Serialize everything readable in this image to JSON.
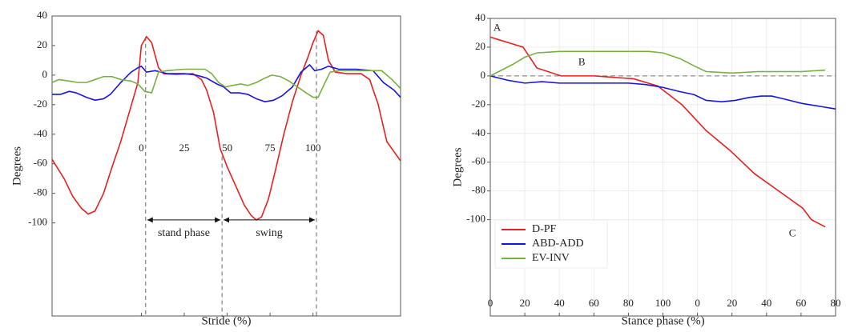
{
  "chart_data": [
    {
      "type": "line",
      "xlabel": "Stride (%)",
      "ylabel": "Degrees",
      "xlim": [
        -52,
        151
      ],
      "ylim": [
        -163,
        40
      ],
      "xticks": [
        0,
        25,
        50,
        75,
        100
      ],
      "yticks": [
        40,
        20,
        0,
        -20,
        -40,
        -60,
        -80,
        -100
      ],
      "series": [
        {
          "color": "#e8201e",
          "x": [
            -52,
            -45,
            -40,
            -35,
            -31,
            -27,
            -22,
            -17,
            -12,
            -7,
            -2,
            0,
            3,
            6,
            10,
            13,
            20,
            30,
            35,
            38,
            42,
            46,
            50,
            55,
            60,
            64,
            67,
            70,
            74,
            78,
            83,
            88,
            93,
            97,
            100,
            103,
            106,
            109,
            113,
            120,
            128,
            133,
            138,
            143,
            151
          ],
          "values": [
            -57,
            -70,
            -82,
            -90,
            -94,
            -92,
            -80,
            -62,
            -45,
            -25,
            -5,
            20,
            26,
            22,
            5,
            1,
            0.5,
            1,
            -3,
            -10,
            -25,
            -50,
            -62,
            -75,
            -88,
            -95,
            -98,
            -96,
            -84,
            -65,
            -40,
            -18,
            0,
            12,
            22,
            30,
            27,
            10,
            2,
            1,
            1,
            -3,
            -20,
            -45,
            -58
          ]
        },
        {
          "color": "#1515e0",
          "x": [
            -52,
            -47,
            -42,
            -38,
            -32,
            -27,
            -22,
            -18,
            -12,
            -6,
            -2,
            0,
            3,
            8,
            15,
            25,
            32,
            38,
            44,
            48,
            52,
            57,
            62,
            67,
            72,
            77,
            82,
            88,
            93,
            98,
            101,
            105,
            109,
            115,
            125,
            135,
            141,
            147,
            151
          ],
          "values": [
            -13,
            -13,
            -11,
            -12,
            -15,
            -17,
            -16,
            -13,
            -5,
            2,
            5,
            6,
            2,
            3,
            1,
            1,
            0,
            -2,
            -6,
            -8,
            -12,
            -12,
            -13,
            -16,
            -18,
            -17,
            -14,
            -8,
            2,
            7,
            3,
            4,
            6,
            4,
            4,
            3,
            -5,
            -10,
            -15
          ]
        },
        {
          "color": "#77b040",
          "x": [
            -52,
            -48,
            -42,
            -37,
            -32,
            -27,
            -22,
            -17,
            -12,
            -6,
            -2,
            2,
            6,
            10,
            15,
            25,
            32,
            37,
            41,
            45,
            49,
            53,
            58,
            62,
            67,
            72,
            76,
            81,
            86,
            91,
            96,
            100,
            103,
            107,
            110,
            115,
            125,
            135,
            140,
            146,
            151
          ],
          "values": [
            -5,
            -3,
            -4,
            -5,
            -5,
            -3,
            -1,
            -1,
            -3,
            -4,
            -6,
            -11,
            -12,
            2,
            3,
            4,
            4,
            4,
            1,
            -5,
            -8,
            -7,
            -6,
            -7,
            -5,
            -2,
            0,
            -1,
            -4,
            -8,
            -12,
            -15,
            -15,
            -5,
            2,
            3,
            3,
            3,
            3,
            -3,
            -9
          ]
        }
      ],
      "vlines": [
        {
          "x": 2.5,
          "y": 26
        },
        {
          "x": 47,
          "y": -55
        },
        {
          "x": 102,
          "y": 30
        }
      ],
      "spans": [
        {
          "label": "stand phase",
          "x": [
            2.5,
            47
          ],
          "y": -98
        },
        {
          "label": "swing",
          "x": [
            47,
            102
          ],
          "y": -98
        }
      ]
    },
    {
      "type": "line",
      "xlabel": "Stance phase (%)",
      "ylabel": "Degrees",
      "xlim": [
        0,
        200
      ],
      "ylim": [
        -167,
        40
      ],
      "grid": true,
      "hline": 0,
      "legend": "lower left",
      "xticks": [
        0,
        20,
        40,
        60,
        80,
        100,
        {
          "value": 120,
          "label": "0"
        },
        {
          "value": 140,
          "label": "20"
        },
        {
          "value": 160,
          "label": "40"
        },
        {
          "value": 180,
          "label": "60"
        },
        {
          "value": 200,
          "label": "80"
        }
      ],
      "yticks": [
        40,
        20,
        0,
        -20,
        -40,
        -60,
        -80,
        -100
      ],
      "series": [
        {
          "name": "D-PF",
          "color": "#e8201e",
          "x": [
            0,
            19,
            27,
            41,
            60,
            83,
            97,
            111,
            125,
            139,
            153,
            167,
            181,
            186,
            194
          ],
          "values": [
            27,
            20,
            5.5,
            0,
            0,
            -2,
            -7,
            -20,
            -38,
            -52,
            -68,
            -80,
            -92,
            -100,
            -105
          ]
        },
        {
          "name": "ABD-ADD",
          "color": "#1515e0",
          "x": [
            0,
            10,
            20,
            30,
            40,
            60,
            80,
            90,
            100,
            110,
            118,
            125,
            134,
            142,
            150,
            157,
            163,
            170,
            180,
            190,
            200
          ],
          "values": [
            0,
            -3,
            -5,
            -4,
            -5,
            -5,
            -5,
            -6,
            -8,
            -11,
            -13,
            -17,
            -18,
            -17,
            -15,
            -14,
            -14,
            -16,
            -19,
            -21,
            -23
          ]
        },
        {
          "name": "EV-INV",
          "color": "#77b040",
          "x": [
            0,
            13,
            20,
            27,
            40,
            60,
            80,
            92,
            100,
            110,
            118,
            125,
            140,
            155,
            170,
            180,
            194
          ],
          "values": [
            0,
            8,
            13,
            16,
            17,
            17,
            17,
            17,
            16,
            12,
            7,
            3,
            2,
            3,
            3,
            3,
            4
          ]
        }
      ],
      "annotations": [
        {
          "text": "A",
          "x": 4,
          "y": 33
        },
        {
          "text": "B",
          "x": 53,
          "y": 9
        },
        {
          "text": "C",
          "x": 175,
          "y": -110
        }
      ]
    }
  ]
}
